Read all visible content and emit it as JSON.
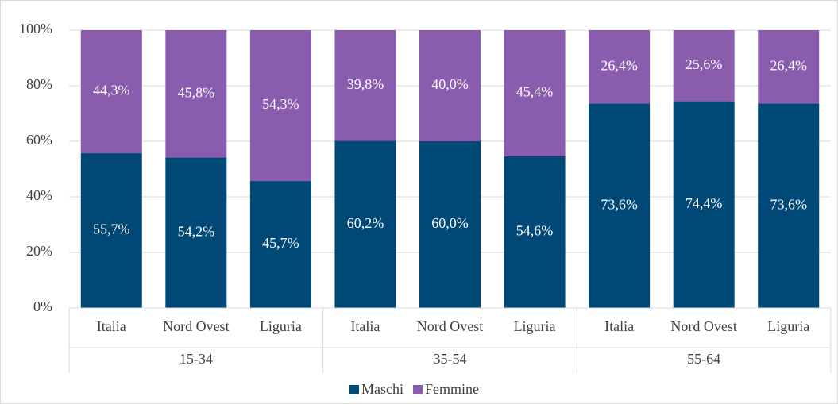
{
  "chart_data": {
    "type": "stacked_bar",
    "categories": [
      "Italia",
      "Nord Ovest",
      "Liguria",
      "Italia",
      "Nord Ovest",
      "Liguria",
      "Italia",
      "Nord Ovest",
      "Liguria"
    ],
    "groups": [
      "15-34",
      "35-54",
      "55-64"
    ],
    "series": [
      {
        "name": "Maschi",
        "color": "#004876",
        "values": [
          55.7,
          54.2,
          45.7,
          60.2,
          60.0,
          54.6,
          73.6,
          74.4,
          73.6
        ],
        "value_labels": [
          "55,7%",
          "54,2%",
          "45,7%",
          "60,2%",
          "60,0%",
          "54,6%",
          "73,6%",
          "74,4%",
          "73,6%"
        ]
      },
      {
        "name": "Femmine",
        "color": "#8a5cad",
        "values": [
          44.3,
          45.8,
          54.3,
          39.8,
          40.0,
          45.4,
          26.4,
          25.6,
          26.4
        ],
        "value_labels": [
          "44,3%",
          "45,8%",
          "54,3%",
          "39,8%",
          "40,0%",
          "45,4%",
          "26,4%",
          "25,6%",
          "26,4%"
        ]
      }
    ],
    "ylim": [
      0,
      100
    ],
    "yticks": [
      {
        "value": 0,
        "label": "0%"
      },
      {
        "value": 20,
        "label": "20%"
      },
      {
        "value": 40,
        "label": "40%"
      },
      {
        "value": 60,
        "label": "60%"
      },
      {
        "value": 80,
        "label": "80%"
      },
      {
        "value": 100,
        "label": "100%"
      }
    ],
    "grid": true,
    "legend": "bottom"
  }
}
